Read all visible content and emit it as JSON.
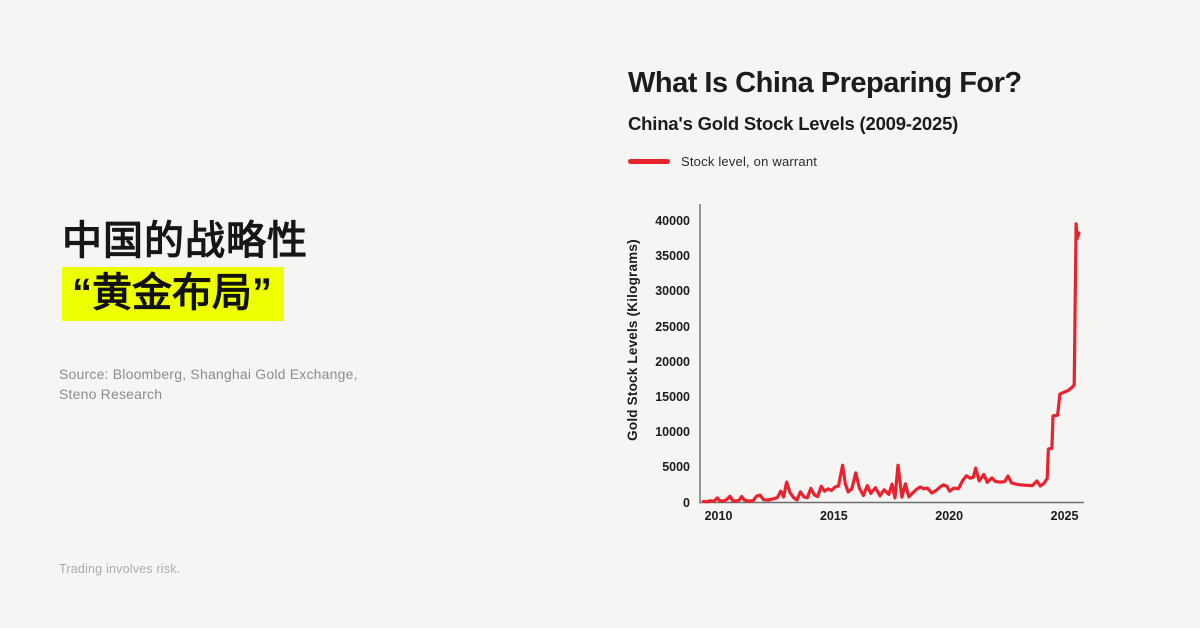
{
  "page": {
    "background_color": "#F5F5F3",
    "disclaimer": "Trading involves risk."
  },
  "left_panel": {
    "headline_line1": "中国的战略性",
    "headline_line2": "“黄金布局”",
    "highlight_color": "#EEFF00",
    "source_line1": "Source: Bloomberg, Shanghai Gold Exchange,",
    "source_line2": "Steno Research"
  },
  "chart_panel": {
    "title": "What Is China Preparing For?",
    "subtitle": "China's Gold Stock Levels (2009-2025)",
    "legend": {
      "label": "Stock level, on warrant",
      "swatch_color": "#E9222E"
    }
  },
  "chart_data": {
    "type": "line",
    "title": "China's Gold Stock Levels (2009-2025)",
    "xlabel": "",
    "ylabel": "Gold Stock Levels (Kilograms)",
    "xlim": [
      2009.2,
      2025.8
    ],
    "ylim": [
      0,
      40000
    ],
    "grid": false,
    "legend_position": "above plot, top-left",
    "x_ticks": [
      "2010",
      "2015",
      "2020",
      "2025"
    ],
    "y_ticks": [
      "0",
      "5000",
      "10000",
      "15000",
      "20000",
      "25000",
      "30000",
      "35000",
      "40000"
    ],
    "series": [
      {
        "name": "Stock level, on warrant",
        "color": "#E9222E",
        "points": [
          [
            2009.35,
            150
          ],
          [
            2009.5,
            100
          ],
          [
            2009.65,
            250
          ],
          [
            2009.8,
            150
          ],
          [
            2009.95,
            650
          ],
          [
            2010.05,
            250
          ],
          [
            2010.2,
            200
          ],
          [
            2010.35,
            400
          ],
          [
            2010.5,
            900
          ],
          [
            2010.62,
            250
          ],
          [
            2010.78,
            200
          ],
          [
            2010.9,
            350
          ],
          [
            2011.0,
            850
          ],
          [
            2011.12,
            350
          ],
          [
            2011.3,
            200
          ],
          [
            2011.5,
            250
          ],
          [
            2011.65,
            900
          ],
          [
            2011.8,
            1050
          ],
          [
            2011.95,
            400
          ],
          [
            2012.15,
            350
          ],
          [
            2012.35,
            500
          ],
          [
            2012.55,
            700
          ],
          [
            2012.7,
            1600
          ],
          [
            2012.82,
            800
          ],
          [
            2012.95,
            2900
          ],
          [
            2013.1,
            1400
          ],
          [
            2013.25,
            700
          ],
          [
            2013.4,
            350
          ],
          [
            2013.55,
            1500
          ],
          [
            2013.7,
            800
          ],
          [
            2013.85,
            650
          ],
          [
            2014.0,
            2000
          ],
          [
            2014.15,
            1100
          ],
          [
            2014.3,
            850
          ],
          [
            2014.45,
            2300
          ],
          [
            2014.6,
            1600
          ],
          [
            2014.75,
            1950
          ],
          [
            2014.9,
            1700
          ],
          [
            2015.05,
            2200
          ],
          [
            2015.2,
            2350
          ],
          [
            2015.38,
            5300
          ],
          [
            2015.5,
            2600
          ],
          [
            2015.62,
            1500
          ],
          [
            2015.78,
            1950
          ],
          [
            2015.95,
            4200
          ],
          [
            2016.1,
            2100
          ],
          [
            2016.28,
            1000
          ],
          [
            2016.45,
            2400
          ],
          [
            2016.6,
            1300
          ],
          [
            2016.8,
            2100
          ],
          [
            2017.0,
            950
          ],
          [
            2017.18,
            1800
          ],
          [
            2017.38,
            1150
          ],
          [
            2017.52,
            2600
          ],
          [
            2017.65,
            650
          ],
          [
            2017.78,
            5300
          ],
          [
            2017.95,
            750
          ],
          [
            2018.1,
            2650
          ],
          [
            2018.25,
            800
          ],
          [
            2018.45,
            1450
          ],
          [
            2018.6,
            1900
          ],
          [
            2018.75,
            2200
          ],
          [
            2018.9,
            1950
          ],
          [
            2019.05,
            2050
          ],
          [
            2019.25,
            1350
          ],
          [
            2019.45,
            1750
          ],
          [
            2019.6,
            2200
          ],
          [
            2019.75,
            2500
          ],
          [
            2019.9,
            2300
          ],
          [
            2020.02,
            1600
          ],
          [
            2020.2,
            2050
          ],
          [
            2020.4,
            1950
          ],
          [
            2020.6,
            3200
          ],
          [
            2020.75,
            3800
          ],
          [
            2020.9,
            3450
          ],
          [
            2021.05,
            3600
          ],
          [
            2021.15,
            4900
          ],
          [
            2021.3,
            3050
          ],
          [
            2021.5,
            4000
          ],
          [
            2021.65,
            2850
          ],
          [
            2021.85,
            3500
          ],
          [
            2022.0,
            3000
          ],
          [
            2022.2,
            2900
          ],
          [
            2022.4,
            2950
          ],
          [
            2022.55,
            3750
          ],
          [
            2022.7,
            2800
          ],
          [
            2022.9,
            2600
          ],
          [
            2023.1,
            2500
          ],
          [
            2023.35,
            2450
          ],
          [
            2023.6,
            2400
          ],
          [
            2023.8,
            3050
          ],
          [
            2023.95,
            2350
          ],
          [
            2024.1,
            2700
          ],
          [
            2024.25,
            3400
          ],
          [
            2024.3,
            7600
          ],
          [
            2024.45,
            7700
          ],
          [
            2024.5,
            12300
          ],
          [
            2024.7,
            12400
          ],
          [
            2024.8,
            15400
          ],
          [
            2025.0,
            15700
          ],
          [
            2025.15,
            15900
          ],
          [
            2025.3,
            16300
          ],
          [
            2025.42,
            16700
          ],
          [
            2025.5,
            39600
          ],
          [
            2025.55,
            37500
          ],
          [
            2025.62,
            38300
          ]
        ]
      }
    ]
  },
  "colors": {
    "ink": "#1C1C1E",
    "line_red": "#E9222E",
    "highlight_yellow": "#EEFF00",
    "source_gray": "#8E8C8A",
    "disclaimer_gray": "#ACABA9",
    "axis_spine": "#6E6E6E"
  }
}
